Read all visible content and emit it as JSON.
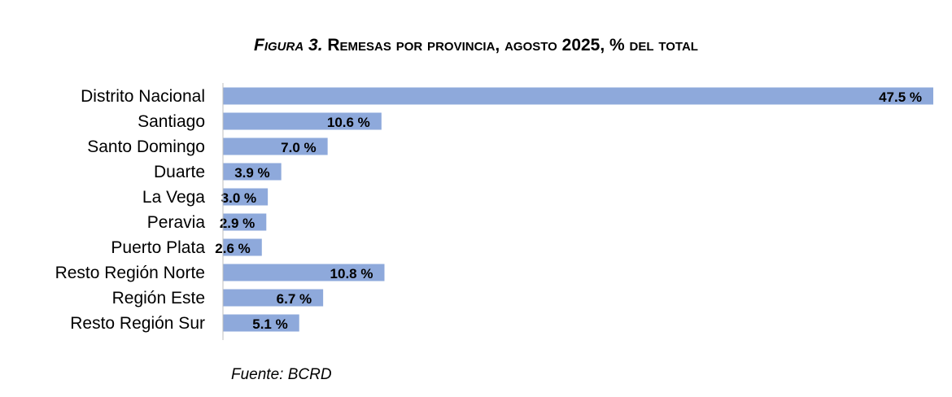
{
  "chart_data": {
    "type": "bar",
    "orientation": "horizontal",
    "title_prefix": "Figura 3.",
    "title_main": "Remesas por provincia, agosto 2025, % del total",
    "categories": [
      "Distrito Nacional",
      "Santiago",
      "Santo Domingo",
      "Duarte",
      "La Vega",
      "Peravia",
      "Puerto Plata",
      "Resto Región Norte",
      "Región Este",
      "Resto Región Sur"
    ],
    "values": [
      47.5,
      10.6,
      7.0,
      3.9,
      3.0,
      2.9,
      2.6,
      10.8,
      6.7,
      5.1
    ],
    "data_labels": [
      "47.5 %",
      "10.6 %",
      "7.0 %",
      "3.9 %",
      "3.0 %",
      "2.9 %",
      "2.6 %",
      "10.8 %",
      "6.7 %",
      "5.1 %"
    ],
    "xlim": [
      0,
      47.5
    ],
    "grid": false,
    "legend": "none",
    "bar_color": "#8EA9DB",
    "axis_color": "#BFBFBF"
  },
  "source": "Fuente: BCRD"
}
